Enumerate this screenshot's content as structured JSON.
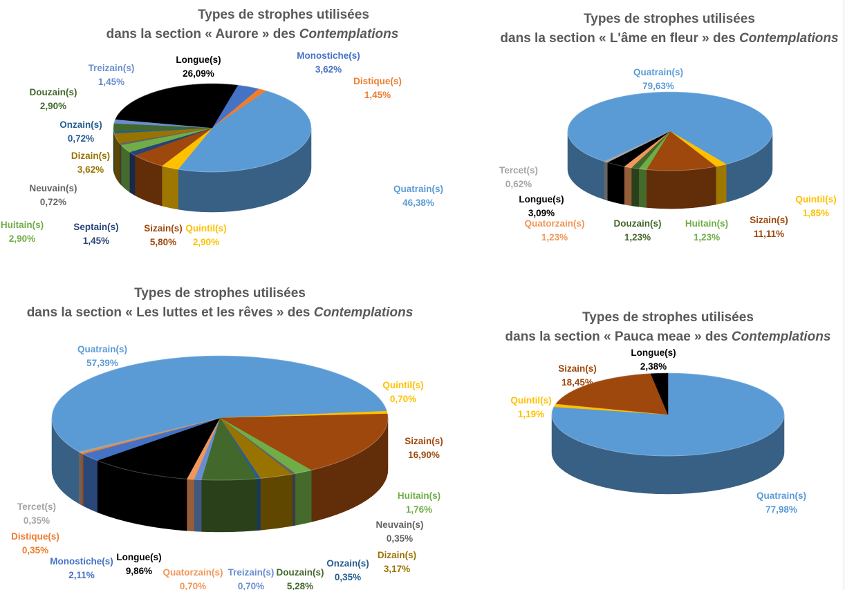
{
  "chart_data": [
    {
      "type": "pie",
      "style": "3d",
      "title_line1": "Types de strophes utilisées",
      "title_line2": "dans la section « Aurore » des ",
      "title_italic": "Contemplations",
      "categories": [
        "Monostiche(s)",
        "Distique(s)",
        "Quatrain(s)",
        "Quintil(s)",
        "Sizain(s)",
        "Septain(s)",
        "Huitain(s)",
        "Neuvain(s)",
        "Dizain(s)",
        "Onzain(s)",
        "Douzain(s)",
        "Treizain(s)",
        "Longue(s)"
      ],
      "values": [
        3.62,
        1.45,
        46.38,
        2.9,
        5.8,
        1.45,
        2.9,
        0.72,
        3.62,
        0.72,
        2.9,
        1.45,
        26.09
      ],
      "colors": [
        "#4472C4",
        "#ED7D31",
        "#5B9BD5",
        "#FFC000",
        "#9E480E",
        "#264478",
        "#70AD47",
        "#636363",
        "#997300",
        "#255E91",
        "#43682B",
        "#698ED0",
        "#000000"
      ],
      "label_colors": [
        "#4472C4",
        "#ED7D31",
        "#5B9BD5",
        "#FFC000",
        "#9E480E",
        "#264478",
        "#70AD47",
        "#636363",
        "#997300",
        "#255E91",
        "#43682B",
        "#698ED0",
        "#000000"
      ]
    },
    {
      "type": "pie",
      "style": "3d",
      "title_line1": "Types de strophes utilisées",
      "title_line2": "dans la section « L'âme en fleur » des ",
      "title_italic": "Contemplations",
      "categories": [
        "Quatrain(s)",
        "Quintil(s)",
        "Sizain(s)",
        "Huitain(s)",
        "Douzain(s)",
        "Quatorzain(s)",
        "Longue(s)",
        "Tercet(s)"
      ],
      "values": [
        79.63,
        1.85,
        11.11,
        1.23,
        1.23,
        1.23,
        3.09,
        0.62
      ],
      "colors": [
        "#5B9BD5",
        "#FFC000",
        "#9E480E",
        "#70AD47",
        "#43682B",
        "#F1975A",
        "#000000",
        "#A5A5A5"
      ],
      "label_colors": [
        "#5B9BD5",
        "#FFC000",
        "#9E480E",
        "#70AD47",
        "#43682B",
        "#F1975A",
        "#000000",
        "#A5A5A5"
      ]
    },
    {
      "type": "pie",
      "style": "3d",
      "title_line1": "Types de strophes utilisées",
      "title_line2": "dans la section « Les luttes et les rêves » des ",
      "title_italic": "Contemplations",
      "categories": [
        "Quatrain(s)",
        "Quintil(s)",
        "Sizain(s)",
        "Huitain(s)",
        "Neuvain(s)",
        "Dizain(s)",
        "Onzain(s)",
        "Douzain(s)",
        "Treizain(s)",
        "Quatorzain(s)",
        "Longue(s)",
        "Monostiche(s)",
        "Distique(s)",
        "Tercet(s)"
      ],
      "values": [
        57.39,
        0.7,
        16.9,
        1.76,
        0.35,
        3.17,
        0.35,
        5.28,
        0.7,
        0.7,
        9.86,
        2.11,
        0.35,
        0.35
      ],
      "colors": [
        "#5B9BD5",
        "#FFC000",
        "#9E480E",
        "#70AD47",
        "#636363",
        "#997300",
        "#255E91",
        "#43682B",
        "#698ED0",
        "#F1975A",
        "#000000",
        "#4472C4",
        "#ED7D31",
        "#A5A5A5"
      ],
      "label_colors": [
        "#5B9BD5",
        "#FFC000",
        "#9E480E",
        "#70AD47",
        "#636363",
        "#997300",
        "#255E91",
        "#43682B",
        "#698ED0",
        "#F1975A",
        "#000000",
        "#4472C4",
        "#ED7D31",
        "#A5A5A5"
      ]
    },
    {
      "type": "pie",
      "style": "3d",
      "title_line1": "Types de strophes utilisées",
      "title_line2": "dans la section « Pauca meae » des ",
      "title_italic": "Contemplations",
      "categories": [
        "Quatrain(s)",
        "Quintil(s)",
        "Sizain(s)",
        "Longue(s)"
      ],
      "values": [
        77.98,
        1.19,
        18.45,
        2.38
      ],
      "colors": [
        "#5B9BD5",
        "#FFC000",
        "#9E480E",
        "#000000"
      ],
      "label_colors": [
        "#5B9BD5",
        "#FFC000",
        "#9E480E",
        "#000000"
      ]
    }
  ]
}
